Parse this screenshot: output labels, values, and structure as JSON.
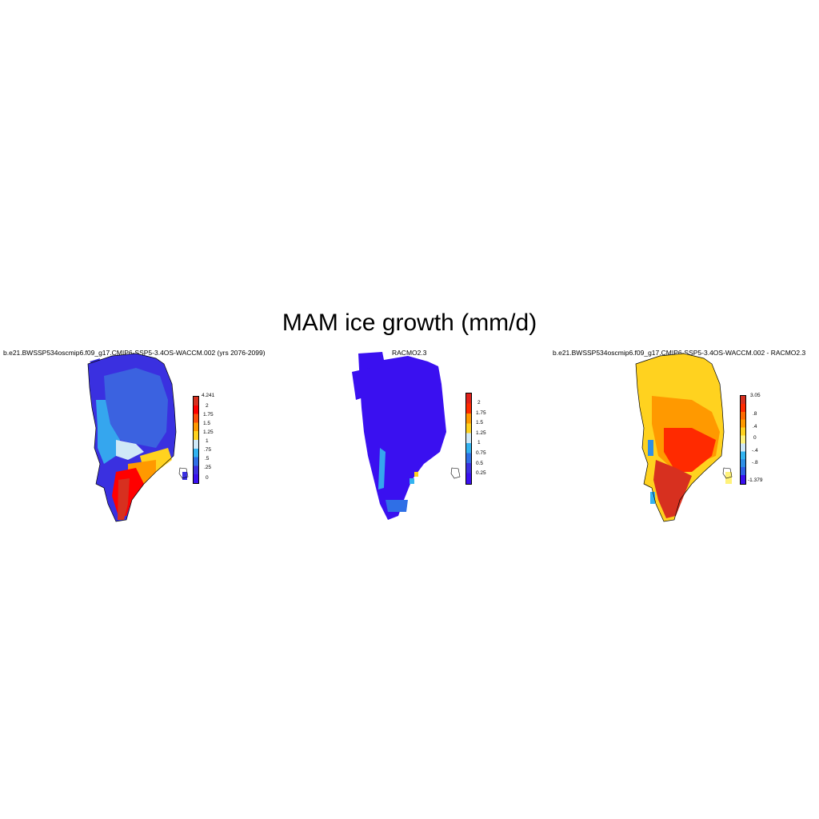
{
  "title": "MAM ice growth (mm/d)",
  "panels": [
    {
      "id": "model",
      "title": "b.e21.BWSSP534oscmip6.f09_g17.CMIP6-SSP5-3.4OS-WACCM.002 (yrs 2076-2099)",
      "colorbar": {
        "labels": [
          "4.241",
          "2",
          "1.75",
          "1.5",
          "1.25",
          "1",
          ".75",
          ".5",
          ".25",
          "0"
        ],
        "colors": [
          "#d7301f",
          "#ff0000",
          "#fc4e0a",
          "#ff9900",
          "#ffd21f",
          "#cfe8f7",
          "#33b3f0",
          "#2f6fe6",
          "#3a30e0",
          "#3a10f0"
        ]
      }
    },
    {
      "id": "racmo",
      "title": "RACMO2.3",
      "colorbar": {
        "labels": [
          "2",
          "1.75",
          "1.5",
          "1.25",
          "1",
          "0.75",
          "0.5",
          "0.25"
        ],
        "colors": [
          "#e0201a",
          "#ff2a00",
          "#ff9900",
          "#ffd21f",
          "#cfe8f7",
          "#33b3f0",
          "#2f6fe6",
          "#3a30e0",
          "#3a10f0"
        ]
      }
    },
    {
      "id": "difference",
      "title": "b.e21.BWSSP534oscmip6.f09_g17.CMIP6-SSP5-3.4OS-WACCM.002 - RACMO2.3",
      "colorbar": {
        "labels": [
          "3.05",
          ".8",
          ".4",
          "0",
          "-.4",
          "-.8",
          "-1.379"
        ],
        "colors": [
          "#d7301f",
          "#ff2a00",
          "#ff6a00",
          "#ff9900",
          "#ffd21f",
          "#fff27a",
          "#cfe8f7",
          "#33b3f0",
          "#2f8fe6",
          "#2f5fe6",
          "#3a10f0"
        ]
      }
    }
  ]
}
